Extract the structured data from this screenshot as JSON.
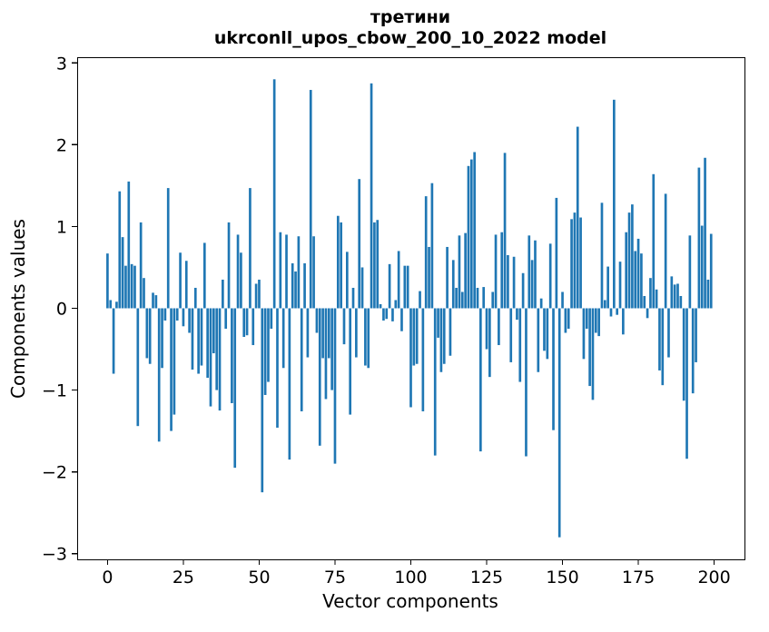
{
  "figure": {
    "title_line1": "третини",
    "title_line2": "ukrconll_upos_cbow_200_10_2022 model",
    "xlabel": "Vector components",
    "ylabel": "Components values"
  },
  "colors": {
    "bar": "#1f77b4",
    "text": "#000000",
    "background": "#ffffff",
    "spine": "#000000"
  },
  "chart_data": {
    "type": "bar",
    "title": "третини\nukrconll_upos_cbow_200_10_2022 model",
    "xlabel": "Vector components",
    "ylabel": "Components values",
    "legend_position": "none",
    "grid": false,
    "bar_color": "#1f77b4",
    "bar_width": 0.8,
    "xlim": [
      -10,
      210
    ],
    "ylim": [
      -3.07,
      3.07
    ],
    "x_ticks": [
      0,
      25,
      50,
      75,
      100,
      125,
      150,
      175,
      200
    ],
    "y_ticks": [
      -3,
      -2,
      -1,
      0,
      1,
      2,
      3
    ],
    "x_start": 0,
    "n_components": 200,
    "values": [
      0.67,
      0.1,
      -0.8,
      0.08,
      1.43,
      0.87,
      0.52,
      1.55,
      0.54,
      0.52,
      -1.44,
      1.05,
      0.37,
      -0.61,
      -0.68,
      0.19,
      0.16,
      -1.63,
      -0.73,
      -0.15,
      1.47,
      -1.5,
      -1.3,
      -0.15,
      0.68,
      -0.22,
      0.58,
      -0.3,
      -0.75,
      0.25,
      -0.8,
      -0.7,
      0.8,
      -0.85,
      -1.2,
      -0.55,
      -1.0,
      -1.25,
      0.35,
      -0.25,
      1.05,
      -1.16,
      -1.95,
      0.9,
      0.68,
      -0.35,
      -0.33,
      1.47,
      -0.45,
      0.3,
      0.35,
      -2.25,
      -1.06,
      -0.9,
      -0.25,
      2.8,
      -1.46,
      0.93,
      -0.73,
      0.9,
      -1.85,
      0.55,
      0.45,
      0.88,
      -1.26,
      0.55,
      -0.6,
      2.67,
      0.88,
      -0.3,
      -1.68,
      -0.61,
      -1.11,
      -0.61,
      -1.0,
      -1.9,
      1.13,
      1.05,
      -0.44,
      0.69,
      -1.3,
      0.25,
      -0.6,
      1.58,
      0.5,
      -0.7,
      -0.73,
      2.75,
      1.05,
      1.08,
      0.05,
      -0.15,
      -0.13,
      0.54,
      -0.16,
      0.1,
      0.7,
      -0.28,
      0.52,
      0.52,
      -1.21,
      -0.7,
      -0.68,
      0.21,
      -1.26,
      1.37,
      0.75,
      1.53,
      -1.8,
      -0.36,
      -0.78,
      -0.68,
      0.75,
      -0.58,
      0.59,
      0.25,
      0.89,
      0.2,
      0.92,
      1.74,
      1.82,
      1.91,
      0.25,
      -1.75,
      0.26,
      -0.5,
      -0.84,
      0.2,
      0.9,
      -0.45,
      0.93,
      1.9,
      0.65,
      -0.66,
      0.63,
      -0.14,
      -0.9,
      0.43,
      -1.81,
      0.89,
      0.59,
      0.83,
      -0.78,
      0.12,
      -0.52,
      -0.62,
      0.79,
      -1.49,
      1.35,
      -2.8,
      0.2,
      -0.3,
      -0.25,
      1.09,
      1.17,
      2.22,
      1.11,
      -0.62,
      -0.25,
      -0.95,
      -1.12,
      -0.3,
      -0.34,
      1.29,
      0.1,
      0.51,
      -0.1,
      2.55,
      -0.08,
      0.57,
      -0.32,
      0.93,
      1.17,
      1.27,
      0.7,
      0.85,
      0.67,
      0.15,
      -0.12,
      0.37,
      1.64,
      0.23,
      -0.76,
      -0.94,
      1.4,
      -0.6,
      0.39,
      0.29,
      0.3,
      0.15,
      -1.13,
      -1.84,
      0.89,
      -1.04,
      -0.66,
      1.72,
      1.01,
      1.84,
      0.35,
      0.91
    ]
  }
}
